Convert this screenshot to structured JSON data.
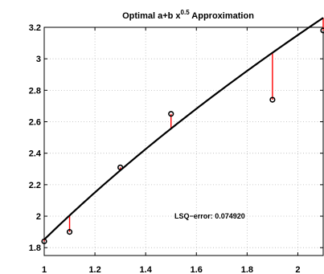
{
  "chart_data": {
    "type": "scatter",
    "title": {
      "main": "Optimal a+b x",
      "sup": "0.5",
      "tail": " Approximation"
    },
    "xlim": [
      1.0,
      2.1
    ],
    "ylim": [
      1.75,
      3.2
    ],
    "xticks": [
      1.0,
      1.2,
      1.4,
      1.6,
      1.8,
      2.0
    ],
    "xtick_labels": [
      "1",
      "1.2",
      "1.4",
      "1.6",
      "1.8",
      "2"
    ],
    "yticks": [
      1.8,
      2.0,
      2.2,
      2.4,
      2.6,
      2.8,
      3.0,
      3.2
    ],
    "ytick_labels": [
      "1.8",
      "2",
      "2.2",
      "2.4",
      "2.6",
      "2.8",
      "3",
      "3.2"
    ],
    "grid": true,
    "fit_curve": {
      "a": -1.2858,
      "b": 3.1372,
      "exponent": 0.5,
      "color": "#000000"
    },
    "points": {
      "x": [
        1.0,
        1.1,
        1.3,
        1.5,
        1.9,
        2.1
      ],
      "y": [
        1.84,
        1.9,
        2.31,
        2.65,
        2.74,
        3.18
      ],
      "marker_color": "#000000"
    },
    "residual_color": "#ff0000",
    "annotation": "LSQ−error: 0.074920"
  }
}
